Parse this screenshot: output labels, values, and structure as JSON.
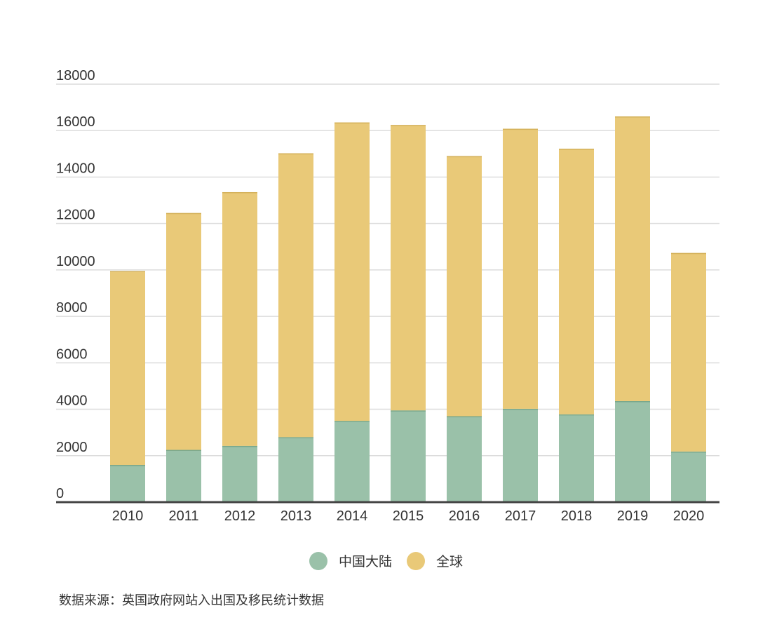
{
  "chart_data": {
    "type": "bar",
    "stacked": true,
    "categories": [
      "2010",
      "2011",
      "2012",
      "2013",
      "2014",
      "2015",
      "2016",
      "2017",
      "2018",
      "2019",
      "2020"
    ],
    "series": [
      {
        "name": "中国大陆",
        "color": "#9ac1a9",
        "values": [
          1600,
          2250,
          2420,
          2800,
          3500,
          3950,
          3700,
          4020,
          3780,
          4350,
          2180
        ]
      },
      {
        "name": "全球",
        "color": "#e9c978",
        "values": [
          8350,
          10200,
          10930,
          12220,
          12850,
          12290,
          11200,
          12060,
          11440,
          12260,
          8550
        ]
      }
    ],
    "ylim": [
      0,
      18000
    ],
    "yticks": [
      "0",
      "2000",
      "4000",
      "6000",
      "8000",
      "10000",
      "12000",
      "14000",
      "16000",
      "18000"
    ],
    "grid": true,
    "legend_position": "bottom",
    "source": "数据来源：英国政府网站入出国及移民统计数据"
  }
}
